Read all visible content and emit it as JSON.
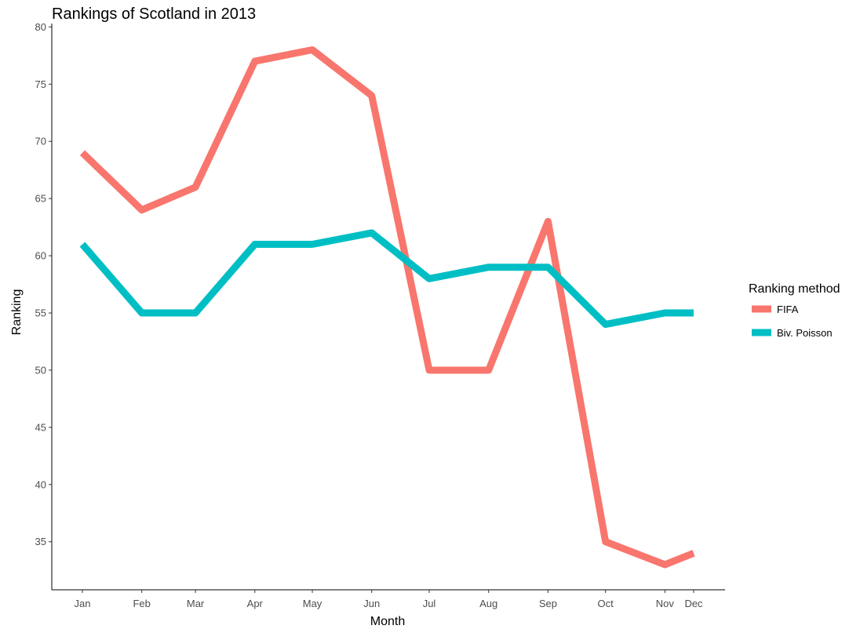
{
  "chart_data": {
    "type": "line",
    "title": "Rankings of Scotland in 2013",
    "xlabel": "Month",
    "ylabel": "Ranking",
    "ylim": [
      30.8,
      80.3
    ],
    "y_ticks": [
      35,
      40,
      45,
      50,
      55,
      60,
      65,
      70,
      75,
      80
    ],
    "x_ticks": [
      "Jan",
      "Feb",
      "Mar",
      "Apr",
      "May",
      "Jun",
      "Jul",
      "Aug",
      "Sep",
      "Oct",
      "Nov",
      "Dec"
    ],
    "x_day_of_year": [
      15,
      46,
      74,
      105,
      135,
      166,
      196,
      227,
      258,
      288,
      319,
      334
    ],
    "grid": false,
    "legend": {
      "title": "Ranking method",
      "placement": "right"
    },
    "series": [
      {
        "name": "FIFA",
        "color": "#F8766D",
        "x": [
          "Jan",
          "Feb",
          "Mar",
          "Apr",
          "May",
          "Jun",
          "Jul",
          "Aug",
          "Sep",
          "Oct",
          "Nov",
          "Dec"
        ],
        "values": [
          69,
          64,
          66,
          77,
          78,
          74,
          50,
          50,
          63,
          35,
          33,
          34
        ]
      },
      {
        "name": "Biv. Poisson",
        "color": "#00BFC4",
        "x": [
          "Jan",
          "Feb",
          "Mar",
          "Apr",
          "May",
          "Jun",
          "Jul",
          "Aug",
          "Sep",
          "Oct",
          "Nov",
          "Dec"
        ],
        "values": [
          61,
          55,
          55,
          61,
          61,
          62,
          58,
          59,
          59,
          54,
          55,
          55
        ]
      }
    ]
  }
}
